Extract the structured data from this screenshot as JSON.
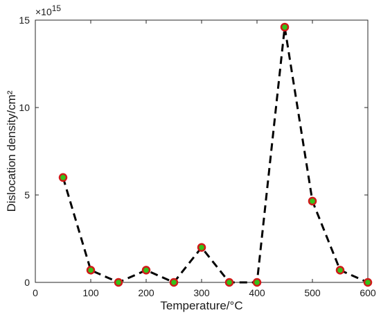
{
  "chart_data": {
    "type": "line",
    "xlabel": "Temperature/°C",
    "ylabel": "Dislocation density/cm²",
    "y_multiplier_label": "×10",
    "y_multiplier_exponent": "15",
    "xlim": [
      0,
      600
    ],
    "ylim": [
      0,
      15
    ],
    "xticks": [
      0,
      100,
      200,
      300,
      400,
      500,
      600
    ],
    "yticks": [
      0,
      5,
      10,
      15
    ],
    "grid": false,
    "series": [
      {
        "x": [
          50,
          100,
          150,
          200,
          250,
          300,
          350,
          400,
          450,
          500,
          550,
          600
        ],
        "y": [
          6.0,
          0.7,
          0.0,
          0.7,
          0.0,
          2.0,
          0.0,
          0.0,
          14.6,
          4.65,
          0.7,
          0.0
        ],
        "line_style": "dashed",
        "line_color": "#000000",
        "marker_face_color": "#35c219",
        "marker_edge_color": "#d11a1a"
      }
    ]
  }
}
